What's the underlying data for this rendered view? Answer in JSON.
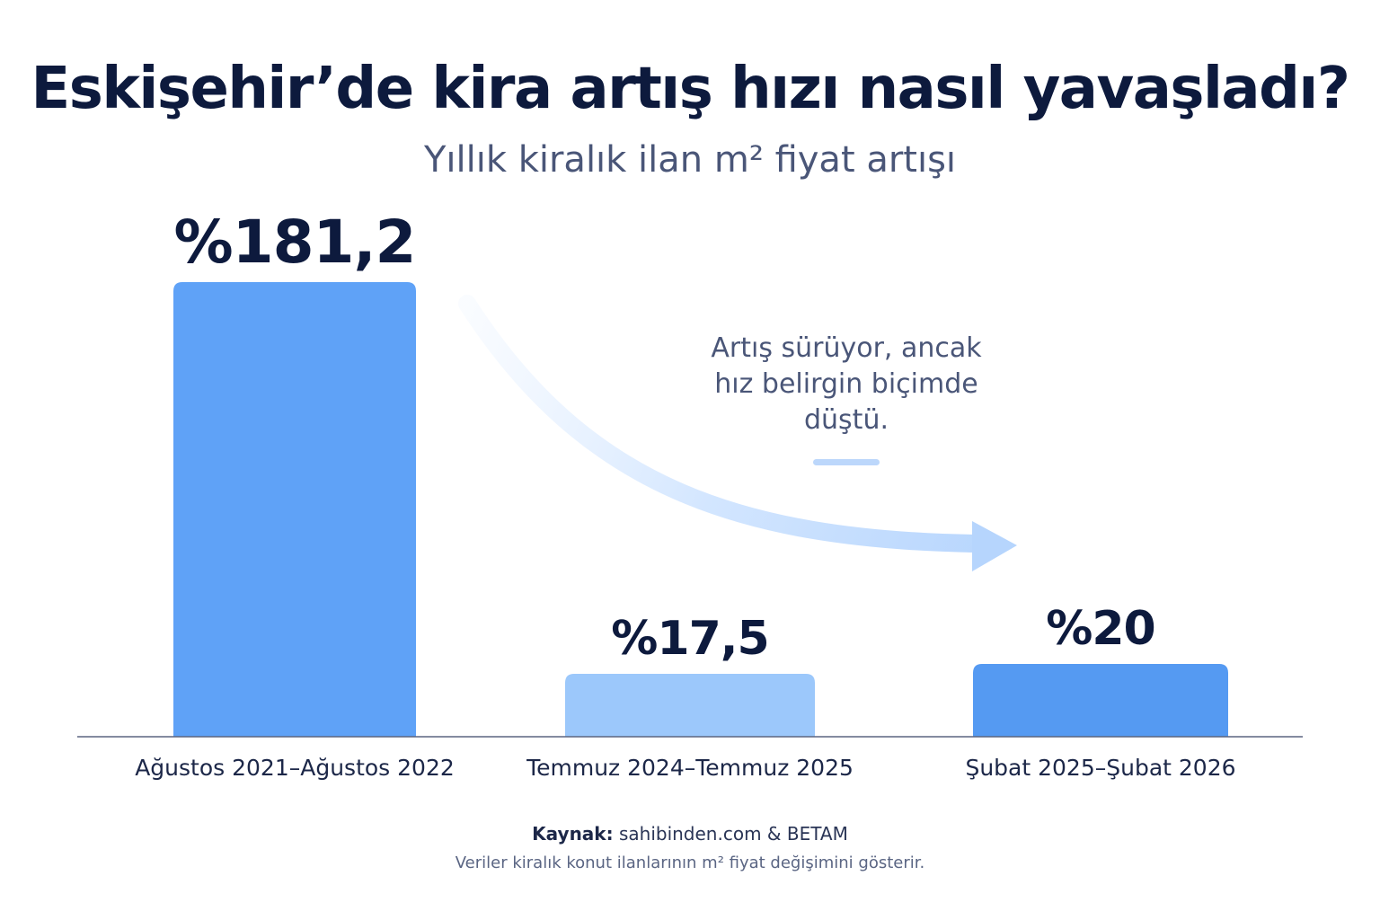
{
  "chart_data": {
    "type": "bar",
    "title": "Eskişehir’de kira artış hızı nasıl yavaşladı?",
    "subtitle": "Yıllık kiralık ilan m² fiyat artışı",
    "categories": [
      "Ağustos 2021–Ağustos 2022",
      "Temmuz 2024–Temmuz 2025",
      "Şubat 2025–Şubat 2026"
    ],
    "values": [
      181.2,
      17.5,
      20
    ],
    "value_labels": [
      "%181,2",
      "%17,5",
      "%20"
    ],
    "colors": [
      "#5fa2f7",
      "#9cc8fb",
      "#559af2"
    ],
    "ylim": [
      0,
      181.2
    ],
    "grid": false,
    "annotation": "Artış sürüyor, ancak\nhız belirgin biçimde\ndüştü."
  },
  "source": {
    "label": "Kaynak:",
    "text": "sahibinden.com & BETAM"
  },
  "note": "Veriler kiralık konut ilanlarının m² fiyat değişimini gösterir."
}
